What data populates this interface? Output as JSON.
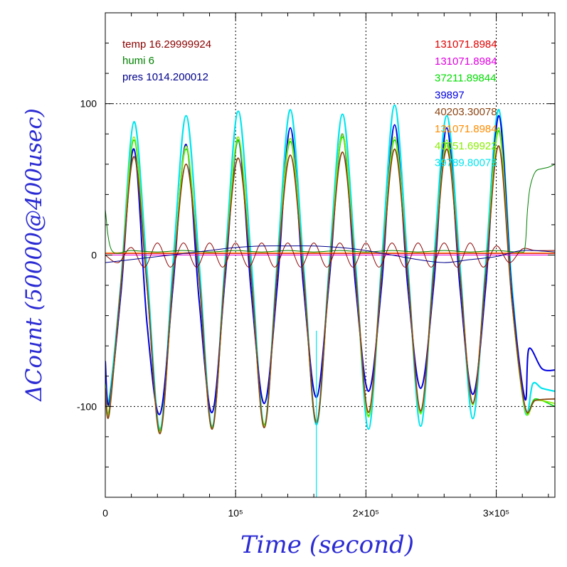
{
  "chart_data": {
    "type": "line",
    "xlabel": "Time (second)",
    "ylabel": "ΔCount (50000@400usec)",
    "xlim": [
      0,
      345000
    ],
    "ylim": [
      -160,
      160
    ],
    "x_ticks": [
      {
        "value": 0,
        "label": "0"
      },
      {
        "value": 100000,
        "label": "10⁵"
      },
      {
        "value": 200000,
        "label": "2×10⁵"
      },
      {
        "value": 300000,
        "label": "3×10⁵"
      }
    ],
    "y_ticks": [
      {
        "value": 100,
        "label": "100"
      },
      {
        "value": 0,
        "label": "0"
      },
      {
        "value": -100,
        "label": "-100"
      }
    ],
    "grid": "dotted at major ticks",
    "legend_left": [
      {
        "text": "temp 16.29999924",
        "color": "#8b0000"
      },
      {
        "text": "humi 6",
        "color": "#008000"
      },
      {
        "text": "pres 1014.200012",
        "color": "#00008b"
      }
    ],
    "legend_right": [
      {
        "text": "131071.8984",
        "color": "#e00000"
      },
      {
        "text": "131071.8984",
        "color": "#e000e0"
      },
      {
        "text": "37211.89844",
        "color": "#00dd00"
      },
      {
        "text": "39897",
        "color": "#0000e0"
      },
      {
        "text": "40203.30078",
        "color": "#8b4513"
      },
      {
        "text": "131071.8984",
        "color": "#ff8c00"
      },
      {
        "text": "40051.69922",
        "color": "#88ee00"
      },
      {
        "text": "39789.80078",
        "color": "#00e5ee"
      }
    ],
    "series": [
      {
        "color": "#00e5ee",
        "width": 2.2,
        "x": [
          0,
          3000,
          12000,
          22000,
          32000,
          42000,
          52000,
          62000,
          72000,
          82000,
          92000,
          102000,
          112000,
          122000,
          132000,
          142000,
          152000,
          162000,
          172000,
          182000,
          192000,
          202000,
          212000,
          222000,
          232000,
          242000,
          252000,
          262000,
          272000,
          282000,
          292000,
          302000,
          312000,
          322000,
          328000,
          335000,
          345000
        ],
        "y": [
          -80,
          -95,
          -18,
          88,
          -10,
          -115,
          -5,
          92,
          -5,
          -113,
          -4,
          95,
          -4,
          -112,
          -4,
          96,
          -5,
          -112,
          -5,
          93,
          -5,
          -115,
          -5,
          99,
          -5,
          -113,
          -5,
          92,
          -5,
          -108,
          -5,
          96,
          -20,
          -103,
          -85,
          -88,
          -90
        ]
      },
      {
        "color": "#0000e0",
        "width": 2.0,
        "x": [
          0,
          3000,
          12000,
          22000,
          32000,
          42000,
          52000,
          62000,
          72000,
          82000,
          92000,
          102000,
          112000,
          122000,
          132000,
          142000,
          152000,
          162000,
          172000,
          182000,
          192000,
          202000,
          212000,
          222000,
          232000,
          242000,
          252000,
          262000,
          272000,
          282000,
          292000,
          302000,
          312000,
          322000,
          325000,
          335000,
          345000
        ],
        "y": [
          -70,
          -98,
          -25,
          70,
          -45,
          -105,
          -20,
          73,
          -30,
          -104,
          -15,
          76,
          -25,
          -98,
          -20,
          84,
          -20,
          -94,
          -15,
          80,
          -20,
          -90,
          -20,
          86,
          -20,
          -88,
          -20,
          84,
          -20,
          -92,
          -20,
          92,
          -25,
          -95,
          -62,
          -75,
          -76
        ]
      },
      {
        "color": "#00dd00",
        "width": 1.6,
        "x": [
          0,
          3000,
          12000,
          22000,
          32000,
          42000,
          52000,
          62000,
          72000,
          82000,
          92000,
          102000,
          112000,
          122000,
          132000,
          142000,
          152000,
          162000,
          172000,
          182000,
          192000,
          202000,
          212000,
          222000,
          232000,
          242000,
          252000,
          262000,
          272000,
          282000,
          292000,
          302000,
          312000,
          322000,
          330000,
          345000
        ],
        "y": [
          -85,
          -102,
          -20,
          76,
          -20,
          -116,
          -15,
          70,
          -15,
          -114,
          -10,
          76,
          -15,
          -112,
          -10,
          75,
          -12,
          -110,
          -10,
          78,
          -12,
          -106,
          -12,
          76,
          -12,
          -104,
          -12,
          74,
          -12,
          -98,
          -12,
          82,
          -30,
          -101,
          -95,
          -100
        ]
      },
      {
        "color": "#88ee00",
        "width": 1.6,
        "x": [
          0,
          3000,
          12000,
          22000,
          32000,
          42000,
          52000,
          62000,
          72000,
          82000,
          92000,
          102000,
          112000,
          122000,
          132000,
          142000,
          152000,
          162000,
          172000,
          182000,
          192000,
          202000,
          212000,
          222000,
          232000,
          242000,
          252000,
          262000,
          272000,
          282000,
          292000,
          302000,
          312000,
          322000,
          330000,
          345000
        ],
        "y": [
          -86,
          -103,
          -20,
          78,
          -20,
          -117,
          -15,
          72,
          -15,
          -115,
          -10,
          78,
          -15,
          -113,
          -10,
          77,
          -12,
          -111,
          -10,
          80,
          -12,
          -107,
          -12,
          78,
          -12,
          -105,
          -12,
          76,
          -12,
          -99,
          -12,
          84,
          -30,
          -102,
          -96,
          -98
        ]
      },
      {
        "color": "#8b4513",
        "width": 1.8,
        "x": [
          0,
          3000,
          12000,
          22000,
          32000,
          42000,
          52000,
          62000,
          72000,
          82000,
          92000,
          102000,
          112000,
          122000,
          132000,
          142000,
          152000,
          162000,
          172000,
          182000,
          192000,
          202000,
          212000,
          222000,
          232000,
          242000,
          252000,
          262000,
          272000,
          282000,
          292000,
          302000,
          312000,
          322000,
          330000,
          345000
        ],
        "y": [
          -88,
          -105,
          -20,
          65,
          -20,
          -118,
          -15,
          60,
          -15,
          -115,
          -10,
          64,
          -15,
          -114,
          -10,
          66,
          -12,
          -111,
          -10,
          68,
          -12,
          -104,
          -12,
          70,
          -12,
          -103,
          -12,
          70,
          -12,
          -98,
          -12,
          72,
          -30,
          -100,
          -96,
          -95
        ]
      },
      {
        "color": "#e00000",
        "width": 1.0,
        "x": [
          0,
          345000
        ],
        "y": [
          1,
          1
        ]
      },
      {
        "color": "#e000e0",
        "width": 1.0,
        "x": [
          0,
          345000
        ],
        "y": [
          0,
          0
        ]
      },
      {
        "color": "#ff8c00",
        "width": 1.0,
        "x": [
          0,
          345000
        ],
        "y": [
          1.5,
          1.5
        ]
      },
      {
        "color": "#8b0000",
        "width": 1.0,
        "x": [
          0,
          10000,
          20000,
          30000,
          40000,
          50000,
          60000,
          70000,
          80000,
          90000,
          100000,
          110000,
          120000,
          130000,
          140000,
          150000,
          160000,
          170000,
          180000,
          190000,
          200000,
          210000,
          220000,
          230000,
          240000,
          250000,
          260000,
          270000,
          280000,
          290000,
          300000,
          310000,
          320000,
          330000,
          345000
        ],
        "y": [
          0,
          -5,
          5,
          -8,
          8,
          -8,
          8,
          -8,
          8,
          -8,
          8,
          -8,
          8,
          -8,
          8,
          -8,
          8,
          -8,
          8,
          -8,
          8,
          -8,
          8,
          -8,
          8,
          -8,
          8,
          -8,
          8,
          -8,
          6,
          -5,
          4,
          3,
          3
        ]
      },
      {
        "color": "#008000",
        "width": 1.0,
        "x": [
          0,
          5000,
          20000,
          40000,
          60000,
          80000,
          100000,
          120000,
          140000,
          160000,
          180000,
          200000,
          220000,
          240000,
          260000,
          280000,
          300000,
          318000,
          322000,
          324000,
          326000,
          330000,
          335000,
          340000,
          345000
        ],
        "y": [
          30,
          3,
          3,
          2,
          3,
          2,
          3,
          2,
          3,
          2,
          3,
          2,
          3,
          2,
          3,
          2,
          3,
          2,
          5,
          30,
          45,
          55,
          57,
          58,
          60
        ]
      },
      {
        "color": "#00008b",
        "width": 1.0,
        "x": [
          0,
          20000,
          40000,
          60000,
          80000,
          100000,
          120000,
          140000,
          160000,
          180000,
          200000,
          220000,
          240000,
          260000,
          280000,
          300000,
          320000,
          345000
        ],
        "y": [
          -5,
          -3,
          -1,
          1,
          3,
          5,
          6,
          6,
          6,
          5,
          3,
          0,
          -3,
          -5,
          -3,
          -1,
          3,
          2
        ]
      }
    ],
    "spike": {
      "color": "#00e5ee",
      "x": 162000,
      "y": [
        -50,
        -160
      ]
    }
  }
}
